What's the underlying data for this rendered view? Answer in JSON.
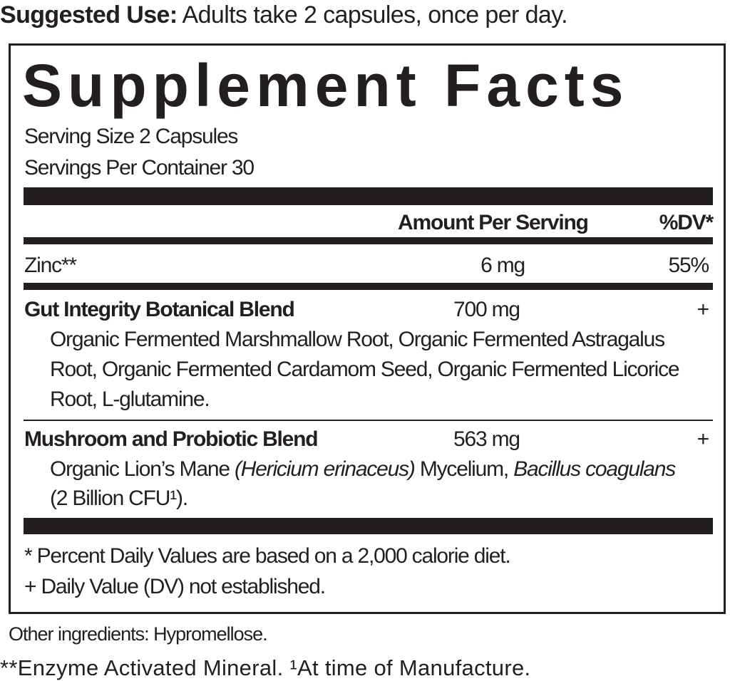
{
  "suggested_use": {
    "label": "Suggested Use:",
    "text": " Adults take 2 capsules, once per day."
  },
  "title": "Supplement Facts",
  "serving_size": "Serving Size 2 Capsules",
  "servings_per_container": "Servings Per Container 30",
  "header": {
    "amount": "Amount Per Serving",
    "dv": "%DV*"
  },
  "rows": [
    {
      "name": "Zinc**",
      "amount": "6 mg",
      "dv": "55%"
    },
    {
      "name": "Gut Integrity Botanical Blend",
      "amount": "700 mg",
      "dv": "+",
      "lines": [
        "Organic Fermented Marshmallow Root, Organic Fermented Astragalus",
        "Root, Organic Fermented Cardamom Seed, Organic Fermented Licorice",
        "Root, L-glutamine."
      ]
    },
    {
      "name": "Mushroom and Probiotic Blend",
      "amount": "563 mg",
      "dv": "+",
      "l1a": "Organic Lion’s Mane ",
      "l1b": "(Hericium erinaceus)",
      "l1c": " Mycelium, ",
      "l1d": "Bacillus coagulans",
      "l2": "(2 Billion CFU¹)."
    }
  ],
  "footnotes": [
    "* Percent Daily Values are based on a 2,000 calorie diet.",
    "+ Daily Value (DV) not established."
  ],
  "other_ingredients": "Other ingredients: Hypromellose.",
  "bottom_note": "**Enzyme Activated Mineral. ¹At time of Manufacture."
}
